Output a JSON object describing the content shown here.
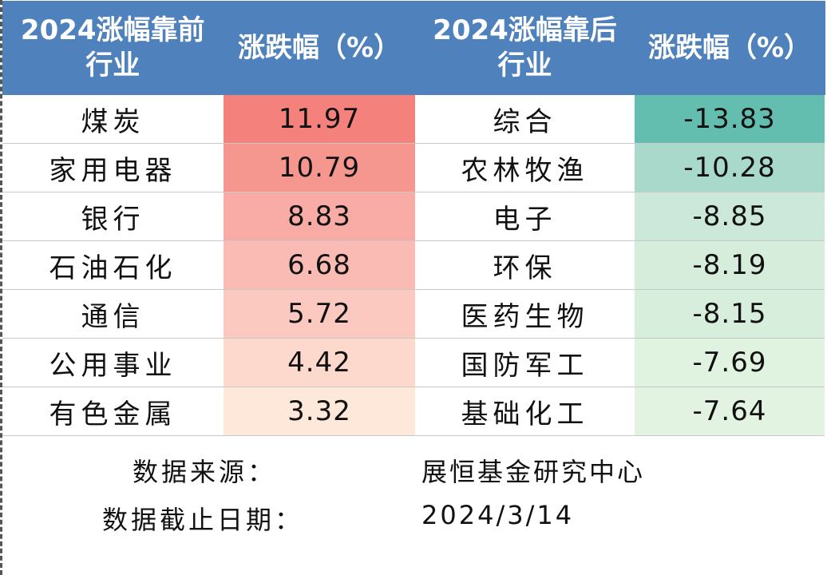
{
  "table": {
    "headers": {
      "top_industry": "2024涨幅靠前行业",
      "top_change": "涨跌幅（%）",
      "bottom_industry": "2024涨幅靠后行业",
      "bottom_change": "涨跌幅（%）"
    },
    "header_color": "#4F81BD"
  },
  "chart_data": {
    "type": "table",
    "columns": [
      "2024涨幅靠前行业",
      "涨跌幅（%）",
      "2024涨幅靠后行业",
      "涨跌幅（%）"
    ],
    "top": [
      {
        "industry": "煤炭",
        "change": "11.97",
        "color": "#F4817B"
      },
      {
        "industry": "家用电器",
        "change": "10.79",
        "color": "#F5978F"
      },
      {
        "industry": "银行",
        "change": "8.83",
        "color": "#F8ACA5"
      },
      {
        "industry": "石油石化",
        "change": "6.68",
        "color": "#F9BBB3"
      },
      {
        "industry": "通信",
        "change": "5.72",
        "color": "#FBC9BF"
      },
      {
        "industry": "公用事业",
        "change": "4.42",
        "color": "#FCD9CC"
      },
      {
        "industry": "有色金属",
        "change": "3.32",
        "color": "#FDE8DA"
      }
    ],
    "bottom": [
      {
        "industry": "综合",
        "change": "-13.83",
        "color": "#63BEAF"
      },
      {
        "industry": "农林牧渔",
        "change": "-10.28",
        "color": "#A8D9CB"
      },
      {
        "industry": "电子",
        "change": "-8.85",
        "color": "#CCE8DA"
      },
      {
        "industry": "环保",
        "change": "-8.19",
        "color": "#D6EDDC"
      },
      {
        "industry": "医药生物",
        "change": "-8.15",
        "color": "#D8EEDC"
      },
      {
        "industry": "国防军工",
        "change": "-7.69",
        "color": "#E0F2E0"
      },
      {
        "industry": "基础化工",
        "change": "-7.64",
        "color": "#E3F3E1"
      }
    ]
  },
  "footer": {
    "source_label": "数据来源：",
    "source_value": "展恒基金研究中心",
    "date_label": "数据截止日期：",
    "date_value": "2024/3/14"
  }
}
